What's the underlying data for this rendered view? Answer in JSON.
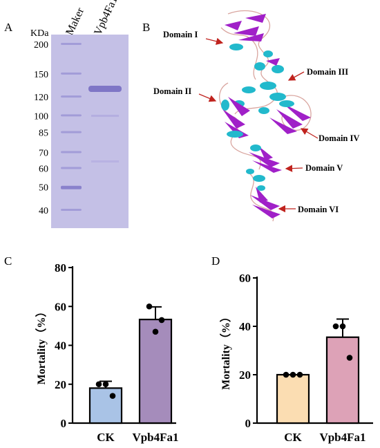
{
  "panels": {
    "A": {
      "letter": "A",
      "unit_label": "KDa",
      "lane_labels": [
        "Maker",
        "Vpb4Fa1"
      ],
      "marker_sizes": [
        "200",
        "150",
        "120",
        "100",
        "85",
        "70",
        "60",
        "50",
        "40"
      ]
    },
    "B": {
      "letter": "B",
      "domains": [
        "Domain I",
        "Domain II",
        "Domain III",
        "Domain IV",
        "Domain V",
        "Domain VI"
      ]
    },
    "C": {
      "letter": "C"
    },
    "D": {
      "letter": "D"
    }
  },
  "colors": {
    "gel_background": "#c4c0e6",
    "gel_band": "#7f76c6",
    "helix": "#22b9cc",
    "strand": "#a020c8",
    "arrow": "#c0231e",
    "bar_ck_c": "#a9c3e6",
    "bar_vpb_c": "#a58cbb",
    "bar_ck_d": "#fbddb2",
    "bar_vpb_d": "#dda2b7"
  },
  "chart_data": [
    {
      "type": "bar",
      "panel": "C",
      "categories": [
        "CK",
        "Vpb4Fa1"
      ],
      "values": [
        18,
        53.3
      ],
      "error": [
        3.5,
        6.5
      ],
      "points": [
        [
          20,
          20,
          14
        ],
        [
          60,
          53,
          47
        ]
      ],
      "ylabel": "Mortality（%）",
      "ylim": [
        0,
        80
      ],
      "yticks": [
        0,
        20,
        40,
        60,
        80
      ]
    },
    {
      "type": "bar",
      "panel": "D",
      "categories": [
        "CK",
        "Vpb4Fa1"
      ],
      "values": [
        20,
        35.5
      ],
      "error": [
        0,
        7.5
      ],
      "points": [
        [
          20,
          20,
          20
        ],
        [
          40,
          40,
          27
        ]
      ],
      "ylabel": "Mortality（%）",
      "ylim": [
        0,
        60
      ],
      "yticks": [
        0,
        20,
        40,
        60
      ]
    }
  ]
}
